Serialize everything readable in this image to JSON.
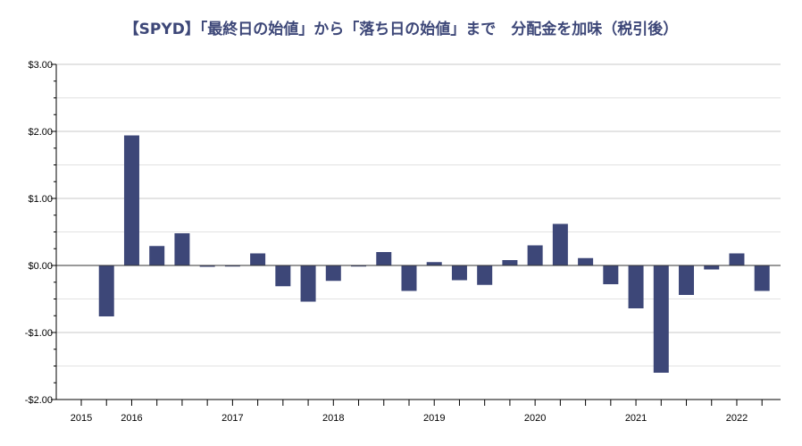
{
  "chart_data": {
    "type": "bar",
    "title": "【SPYD】「最終日の始値」から「落ち日の始値」まで　分配金を加味（税引後）",
    "xlabel": "",
    "ylabel": "",
    "ylim": [
      -2,
      3
    ],
    "y_ticks": [
      {
        "value": 3,
        "label": "$3.00"
      },
      {
        "value": 2,
        "label": "$2.00"
      },
      {
        "value": 1,
        "label": "$1.00"
      },
      {
        "value": 0,
        "label": "$0.00"
      },
      {
        "value": -1,
        "label": "-$1.00"
      },
      {
        "value": -2,
        "label": "-$2.00"
      }
    ],
    "x_tick_labels": [
      {
        "label": "2015",
        "quarter_index": -1
      },
      {
        "label": "2016",
        "quarter_index": 1
      },
      {
        "label": "2017",
        "quarter_index": 5
      },
      {
        "label": "2018",
        "quarter_index": 9
      },
      {
        "label": "2019",
        "quarter_index": 13
      },
      {
        "label": "2020",
        "quarter_index": 17
      },
      {
        "label": "2021",
        "quarter_index": 21
      },
      {
        "label": "2022",
        "quarter_index": 25
      }
    ],
    "values": [
      -0.76,
      1.94,
      0.29,
      0.48,
      -0.02,
      0.0,
      0.18,
      -0.31,
      -0.54,
      -0.23,
      -0.01,
      0.2,
      -0.38,
      0.05,
      -0.22,
      -0.29,
      0.08,
      0.3,
      0.62,
      0.11,
      -0.28,
      -0.64,
      -1.6,
      -0.44,
      -0.06,
      0.18,
      -0.38
    ],
    "bar_color": "#3d4778",
    "grid": true,
    "legend": "none"
  }
}
